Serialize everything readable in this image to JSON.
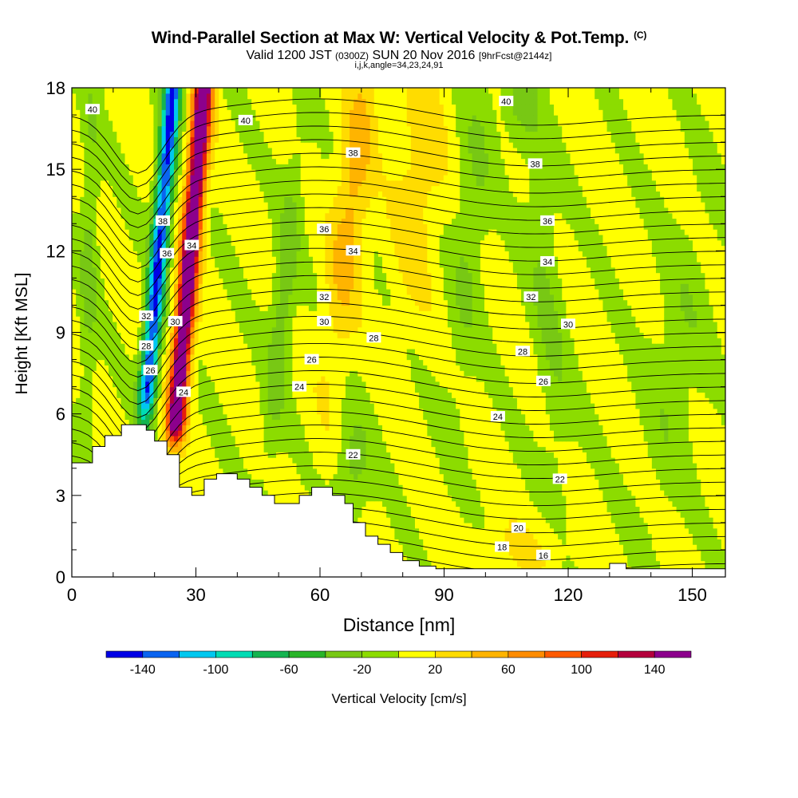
{
  "header": {
    "title": "Wind-Parallel Section at Max W: Vertical Velocity & Pot.Temp.",
    "title_mark": "(C)",
    "valid_prefix": "Valid 1200 JST",
    "valid_utc": "(0300Z)",
    "valid_date": "SUN 20 Nov 2016",
    "forecast": "[9hrFcst@2144z]",
    "grid_info": "i,j,k,angle=34,23,24,91"
  },
  "chart_data": {
    "type": "heatmap",
    "xlabel": "Distance [nm]",
    "ylabel": "Height [Kft MSL]",
    "xlim": [
      0,
      158
    ],
    "ylim": [
      0,
      18
    ],
    "x_ticks": [
      0,
      30,
      60,
      90,
      120,
      150
    ],
    "x_tick_labels": [
      "0",
      "30",
      "60",
      "90",
      "120",
      "150"
    ],
    "y_ticks": [
      0,
      3,
      6,
      9,
      12,
      15,
      18
    ],
    "y_tick_labels": [
      "0",
      "3",
      "6",
      "9",
      "12",
      "15",
      "18"
    ],
    "colorbar": {
      "label": "Vertical Velocity [cm/s]",
      "bins": [
        -160,
        -140,
        -120,
        -100,
        -80,
        -60,
        -40,
        -20,
        0,
        20,
        40,
        60,
        80,
        100,
        120,
        140,
        160
      ],
      "colors": [
        "#0000e6",
        "#0a64f0",
        "#00c8f0",
        "#00dcb4",
        "#14b450",
        "#28b428",
        "#78c814",
        "#8cdc00",
        "#ffff00",
        "#ffdc00",
        "#ffb400",
        "#ff8c00",
        "#ff5a00",
        "#e61e0a",
        "#b4003c",
        "#8c008c"
      ],
      "tick_values": [
        -140,
        -100,
        -60,
        -20,
        20,
        60,
        100,
        140
      ],
      "tick_labels": [
        "-140",
        "-100",
        "-60",
        "-20",
        "20",
        "60",
        "100",
        "140"
      ]
    },
    "theta_contour_labels": [
      {
        "x": 5,
        "y": 17.2,
        "text": "40"
      },
      {
        "x": 42,
        "y": 16.8,
        "text": "40"
      },
      {
        "x": 105,
        "y": 17.5,
        "text": "40"
      },
      {
        "x": 68,
        "y": 15.6,
        "text": "38"
      },
      {
        "x": 112,
        "y": 15.2,
        "text": "38"
      },
      {
        "x": 22,
        "y": 13.1,
        "text": "38"
      },
      {
        "x": 61,
        "y": 12.8,
        "text": "36"
      },
      {
        "x": 115,
        "y": 13.1,
        "text": "36"
      },
      {
        "x": 23,
        "y": 11.9,
        "text": "36"
      },
      {
        "x": 29,
        "y": 12.2,
        "text": "34"
      },
      {
        "x": 68,
        "y": 12.0,
        "text": "34"
      },
      {
        "x": 115,
        "y": 11.6,
        "text": "34"
      },
      {
        "x": 61,
        "y": 10.3,
        "text": "32"
      },
      {
        "x": 111,
        "y": 10.3,
        "text": "32"
      },
      {
        "x": 18,
        "y": 9.6,
        "text": "32"
      },
      {
        "x": 61,
        "y": 9.4,
        "text": "30"
      },
      {
        "x": 120,
        "y": 9.3,
        "text": "30"
      },
      {
        "x": 25,
        "y": 9.4,
        "text": "30"
      },
      {
        "x": 73,
        "y": 8.8,
        "text": "28"
      },
      {
        "x": 109,
        "y": 8.3,
        "text": "28"
      },
      {
        "x": 18,
        "y": 8.5,
        "text": "28"
      },
      {
        "x": 58,
        "y": 8.0,
        "text": "26"
      },
      {
        "x": 114,
        "y": 7.2,
        "text": "26"
      },
      {
        "x": 19,
        "y": 7.6,
        "text": "26"
      },
      {
        "x": 55,
        "y": 7.0,
        "text": "24"
      },
      {
        "x": 103,
        "y": 5.9,
        "text": "24"
      },
      {
        "x": 27,
        "y": 6.8,
        "text": "24"
      },
      {
        "x": 68,
        "y": 4.5,
        "text": "22"
      },
      {
        "x": 118,
        "y": 3.6,
        "text": "22"
      },
      {
        "x": 108,
        "y": 1.8,
        "text": "20"
      },
      {
        "x": 104,
        "y": 1.1,
        "text": "18"
      },
      {
        "x": 114,
        "y": 0.8,
        "text": "16"
      }
    ]
  }
}
